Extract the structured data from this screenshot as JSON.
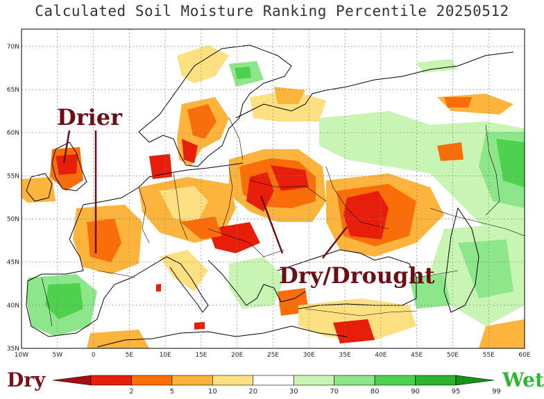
{
  "title": "Calculated Soil Moisture Ranking Percentile 20250512",
  "axes": {
    "lat_ticks": [
      "70N",
      "65N",
      "60N",
      "55N",
      "50N",
      "45N",
      "40N",
      "35N"
    ],
    "lon_ticks": [
      "10W",
      "5W",
      "0",
      "5E",
      "10E",
      "15E",
      "20E",
      "25E",
      "30E",
      "35E",
      "40E",
      "45E",
      "50E",
      "55E",
      "60E"
    ],
    "lon_range": [
      -10,
      60
    ],
    "lat_range": [
      35,
      72
    ]
  },
  "annotations": {
    "drier": "Drier",
    "drought": "Dry/Drought",
    "color": "#6b0f14"
  },
  "legend": {
    "dry_label": "Dry",
    "wet_label": "Wet",
    "ticks": [
      "2",
      "5",
      "10",
      "20",
      "30",
      "70",
      "80",
      "90",
      "95",
      "99"
    ],
    "colors": [
      "#a50f0f",
      "#e61e0a",
      "#fa6e0a",
      "#fcb43c",
      "#fde082",
      "#ffffff",
      "#c8f5b4",
      "#8ee68a",
      "#4ed24e",
      "#2db42d",
      "#149614"
    ]
  },
  "palette": {
    "extreme_dry": "#c81e0a",
    "dry": "#fa6e0a",
    "moderate_dry": "#fcb43c",
    "slight_dry": "#fde082",
    "slight_wet": "#c8f5b4",
    "wet": "#8ee68a",
    "very_wet": "#4ed24e"
  }
}
